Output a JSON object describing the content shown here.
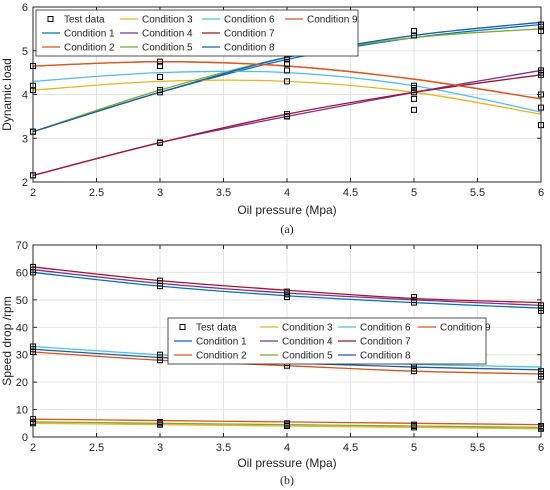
{
  "chart_data": [
    {
      "type": "line",
      "caption": "(a)",
      "xlabel": "Oil pressure (Mpa)",
      "ylabel": "Dynamic load",
      "xlim": [
        2,
        6
      ],
      "ylim": [
        2,
        6
      ],
      "xticks": [
        2,
        2.5,
        3,
        3.5,
        4,
        4.5,
        5,
        5.5,
        6
      ],
      "yticks": [
        2,
        3,
        4,
        5,
        6
      ],
      "grid": true,
      "legend": {
        "placement": "top-left",
        "columns": 4,
        "entries": [
          "Test data",
          "Condition 1",
          "Condition 2",
          "Condition 3",
          "Condition 4",
          "Condition 5",
          "Condition 6",
          "Condition 7",
          "Condition 8",
          "Condition 9"
        ]
      },
      "test_data": {
        "name": "Test data",
        "x": [
          2,
          2,
          2,
          2,
          2,
          2,
          2,
          2,
          2,
          3,
          3,
          3,
          3,
          3,
          3,
          3,
          3,
          3,
          4,
          4,
          4,
          4,
          4,
          4,
          4,
          4,
          4,
          5,
          5,
          5,
          5,
          5,
          5,
          5,
          5,
          5,
          6,
          6,
          6,
          6,
          6,
          6,
          6,
          6,
          6
        ],
        "y": [
          2.15,
          2.15,
          2.15,
          3.15,
          3.15,
          4.1,
          4.2,
          4.65,
          2.15,
          2.9,
          2.9,
          2.9,
          4.05,
          4.1,
          4.4,
          4.65,
          4.75,
          2.9,
          3.5,
          3.5,
          3.55,
          4.3,
          4.55,
          4.7,
          4.8,
          4.85,
          3.5,
          3.65,
          3.9,
          4.05,
          4.1,
          4.15,
          4.2,
          5.35,
          5.45,
          4.1,
          3.3,
          3.7,
          4.0,
          4.45,
          4.5,
          4.55,
          5.45,
          5.55,
          5.6
        ]
      },
      "series": [
        {
          "name": "Condition 1",
          "color": "#0072BD",
          "x": [
            2,
            3,
            4,
            5,
            6
          ],
          "y": [
            3.15,
            4.05,
            4.8,
            5.3,
            5.6
          ]
        },
        {
          "name": "Condition 2",
          "color": "#D95319",
          "x": [
            2,
            3,
            4,
            5,
            6
          ],
          "y": [
            4.65,
            4.75,
            4.65,
            4.35,
            3.9
          ]
        },
        {
          "name": "Condition 3",
          "color": "#EDB120",
          "x": [
            2,
            3,
            4,
            5,
            6
          ],
          "y": [
            4.1,
            4.3,
            4.3,
            4.05,
            3.55
          ]
        },
        {
          "name": "Condition 4",
          "color": "#7E2F8E",
          "x": [
            2,
            3,
            4,
            5,
            6
          ],
          "y": [
            2.15,
            2.9,
            3.5,
            4.05,
            4.55
          ]
        },
        {
          "name": "Condition 5",
          "color": "#77AC30",
          "x": [
            2,
            3,
            4,
            5,
            6
          ],
          "y": [
            3.15,
            4.1,
            4.85,
            5.3,
            5.5
          ]
        },
        {
          "name": "Condition 6",
          "color": "#4DBEEE",
          "x": [
            2,
            3,
            4,
            5,
            6
          ],
          "y": [
            4.3,
            4.5,
            4.5,
            4.2,
            3.6
          ]
        },
        {
          "name": "Condition 7",
          "color": "#A2142F",
          "x": [
            2,
            3,
            4,
            5,
            6
          ],
          "y": [
            2.15,
            2.9,
            3.55,
            4.05,
            4.45
          ]
        },
        {
          "name": "Condition 8",
          "color": "#1F5FA0",
          "x": [
            2,
            3,
            4,
            5,
            6
          ],
          "y": [
            3.15,
            4.05,
            4.85,
            5.35,
            5.65
          ]
        },
        {
          "name": "Condition 9",
          "color": "#E0541A",
          "x": [
            2,
            3,
            4,
            5,
            6
          ],
          "y": [
            4.65,
            4.75,
            4.65,
            4.35,
            3.9
          ]
        }
      ]
    },
    {
      "type": "line",
      "caption": "(b)",
      "xlabel": "Oil pressure (Mpa)",
      "ylabel": "Speed drop /rpm",
      "xlim": [
        2,
        6
      ],
      "ylim": [
        0,
        70
      ],
      "xticks": [
        2,
        2.5,
        3,
        3.5,
        4,
        4.5,
        5,
        5.5,
        6
      ],
      "yticks": [
        0,
        10,
        20,
        30,
        40,
        50,
        60,
        70
      ],
      "grid": true,
      "legend": {
        "placement": "center",
        "columns": 4,
        "entries": [
          "Test data",
          "Condition 1",
          "Condition 2",
          "Condition 3",
          "Condition 4",
          "Condition 5",
          "Condition 6",
          "Condition 7",
          "Condition 8",
          "Condition 9"
        ]
      },
      "test_data": {
        "name": "Test data",
        "x": [
          2,
          2,
          2,
          2,
          2,
          2,
          2,
          2,
          2,
          3,
          3,
          3,
          3,
          3,
          3,
          3,
          3,
          3,
          4,
          4,
          4,
          4,
          4,
          4,
          4,
          4,
          4,
          5,
          5,
          5,
          5,
          5,
          5,
          5,
          5,
          5,
          6,
          6,
          6,
          6,
          6,
          6,
          6,
          6,
          6
        ],
        "y": [
          60,
          61,
          62,
          31,
          32,
          33,
          5,
          5.5,
          6.5,
          55,
          56,
          57,
          28,
          29,
          30,
          4.5,
          5,
          5.5,
          51,
          52,
          53,
          26,
          27,
          28,
          4,
          4.5,
          5,
          49,
          50,
          51,
          24,
          25,
          26,
          3.5,
          4,
          4.5,
          46,
          47,
          48,
          22,
          23,
          24,
          3,
          3.5,
          4
        ]
      },
      "series": [
        {
          "name": "Condition 1",
          "color": "#0072BD",
          "x": [
            2,
            3,
            4,
            5,
            6
          ],
          "y": [
            60,
            55,
            51.5,
            49,
            47
          ]
        },
        {
          "name": "Condition 2",
          "color": "#D95319",
          "x": [
            2,
            3,
            4,
            5,
            6
          ],
          "y": [
            31,
            28,
            26,
            24,
            23
          ]
        },
        {
          "name": "Condition 3",
          "color": "#EDB120",
          "x": [
            2,
            3,
            4,
            5,
            6
          ],
          "y": [
            5,
            4.5,
            4,
            3.5,
            3
          ]
        },
        {
          "name": "Condition 4",
          "color": "#7E2F8E",
          "x": [
            2,
            3,
            4,
            5,
            6
          ],
          "y": [
            61,
            56,
            52.5,
            50,
            48
          ]
        },
        {
          "name": "Condition 5",
          "color": "#77AC30",
          "x": [
            2,
            3,
            4,
            5,
            6
          ],
          "y": [
            5.5,
            5,
            4.5,
            4,
            3.5
          ]
        },
        {
          "name": "Condition 6",
          "color": "#4DBEEE",
          "x": [
            2,
            3,
            4,
            5,
            6
          ],
          "y": [
            33,
            30,
            28,
            26.5,
            25.5
          ]
        },
        {
          "name": "Condition 7",
          "color": "#A2142F",
          "x": [
            2,
            3,
            4,
            5,
            6
          ],
          "y": [
            62,
            57,
            53.5,
            50.5,
            49
          ]
        },
        {
          "name": "Condition 8",
          "color": "#1F5FA0",
          "x": [
            2,
            3,
            4,
            5,
            6
          ],
          "y": [
            32,
            29,
            27,
            25.5,
            24.5
          ]
        },
        {
          "name": "Condition 9",
          "color": "#E0541A",
          "x": [
            2,
            3,
            4,
            5,
            6
          ],
          "y": [
            6.5,
            6,
            5.5,
            5,
            4.5
          ]
        }
      ]
    }
  ]
}
